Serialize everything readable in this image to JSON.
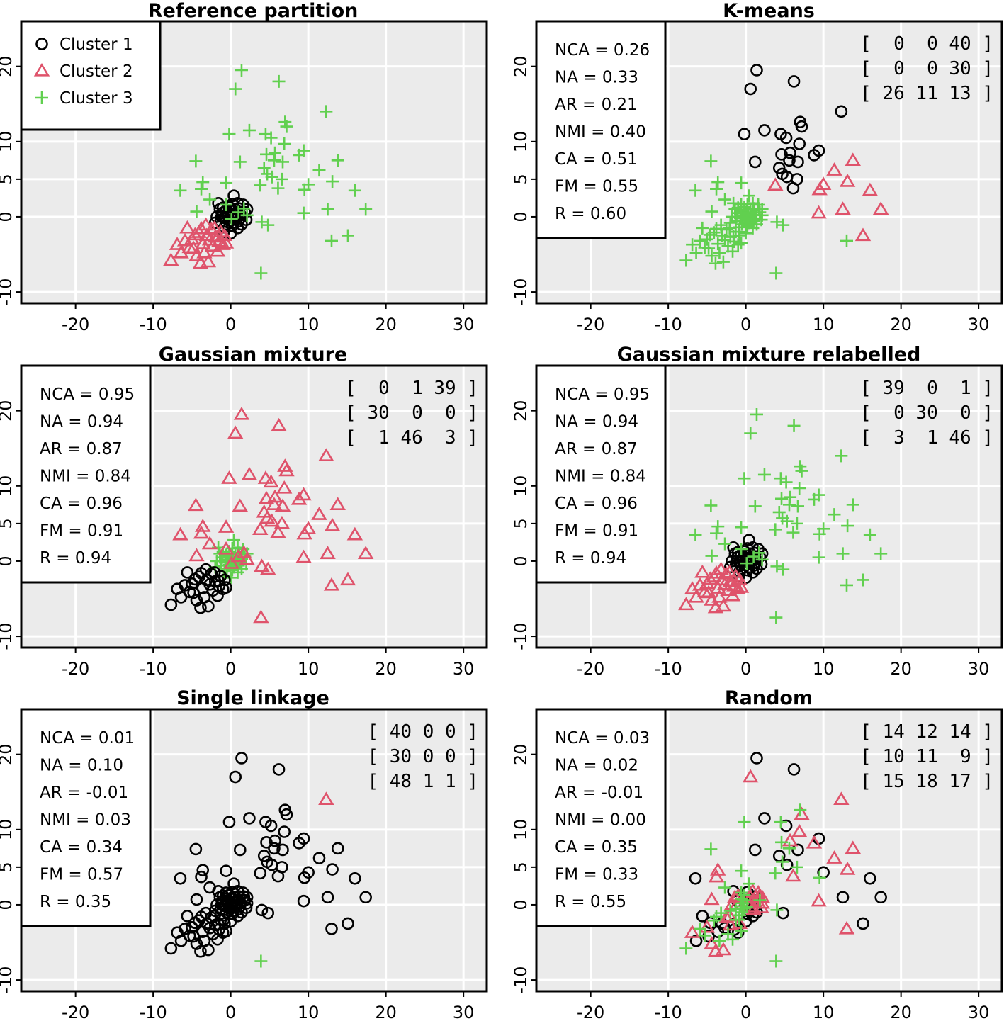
{
  "colors": {
    "cluster1": "#000000",
    "cluster2": "#df536b",
    "cluster3": "#61d04f",
    "panel_bg": "#ebebeb",
    "grid": "#ffffff"
  },
  "shared_axes": {
    "xlim": [
      -27,
      33
    ],
    "ylim": [
      -11.5,
      26
    ],
    "x_ticks": [
      -20,
      -10,
      0,
      10,
      20,
      30
    ],
    "x_tick_labels": [
      "-20",
      "-10",
      "0",
      "10",
      "20",
      "30"
    ],
    "y_ticks": [
      -10,
      0,
      5,
      10,
      20
    ],
    "y_tick_labels": [
      "-10",
      "0",
      "5",
      "10",
      "20"
    ]
  },
  "legend": {
    "entries": [
      {
        "label": "Cluster 1",
        "marker": "circle"
      },
      {
        "label": "Cluster 2",
        "marker": "triangle"
      },
      {
        "label": "Cluster 3",
        "marker": "plus"
      }
    ]
  },
  "panels": [
    {
      "title": "Reference partition",
      "stats": [],
      "matrix": [],
      "mapping": [
        "c1",
        "c2",
        "c3"
      ],
      "noise": 0
    },
    {
      "title": "K-means",
      "stats": [
        "NCA = 0.26",
        "NA = 0.33",
        "AR = 0.21",
        "NMI = 0.40",
        "CA = 0.51",
        "FM = 0.55",
        "R = 0.60"
      ],
      "matrix": [
        "[  0  0 40 ]",
        "[  0  0 30 ]",
        "[ 26 11 13 ]"
      ],
      "mapping": [
        "c3",
        "c3",
        "km"
      ],
      "noise": 0
    },
    {
      "title": "Gaussian mixture",
      "stats": [
        "NCA = 0.95",
        "NA = 0.94",
        "AR = 0.87",
        "NMI = 0.84",
        "CA = 0.96",
        "FM = 0.91",
        "R = 0.94"
      ],
      "matrix": [
        "[  0  1 39 ]",
        "[ 30  0  0 ]",
        "[  1 46  3 ]"
      ],
      "mapping": [
        "c3",
        "c1",
        "c2"
      ],
      "noise": 0
    },
    {
      "title": "Gaussian mixture relabelled",
      "stats": [
        "NCA = 0.95",
        "NA = 0.94",
        "AR = 0.87",
        "NMI = 0.84",
        "CA = 0.96",
        "FM = 0.91",
        "R = 0.94"
      ],
      "matrix": [
        "[ 39  0  1 ]",
        "[  0 30  0 ]",
        "[  3  1 46 ]"
      ],
      "mapping": [
        "c1",
        "c2",
        "c3"
      ],
      "noise": 0
    },
    {
      "title": "Single linkage",
      "stats": [
        "NCA = 0.01",
        "NA = 0.10",
        "AR = -0.01",
        "NMI = 0.03",
        "CA = 0.34",
        "FM = 0.57",
        "R = 0.35"
      ],
      "matrix": [
        "[ 40 0 0 ]",
        "[ 30 0 0 ]",
        "[ 48 1 1 ]"
      ],
      "mapping": [
        "c1",
        "c1",
        "sl"
      ],
      "noise": 0
    },
    {
      "title": "Random",
      "stats": [
        "NCA = 0.03",
        "NA = 0.02",
        "AR = -0.01",
        "NMI = 0.00",
        "CA = 0.35",
        "FM = 0.33",
        "R = 0.55"
      ],
      "matrix": [
        "[ 14 12 14 ]",
        "[ 10 11  9 ]",
        "[ 15 18 17 ]"
      ],
      "mapping": [
        "c1",
        "c2",
        "c3"
      ],
      "noise": 1
    }
  ],
  "chart_data": {
    "type": "scatter",
    "xlim": [
      -27,
      33
    ],
    "ylim": [
      -11.5,
      26
    ],
    "series": [
      {
        "name": "Cluster 1",
        "points": [
          [
            0,
            0
          ],
          [
            0.3,
            0.4
          ],
          [
            -0.4,
            0.2
          ],
          [
            0.5,
            -0.3
          ],
          [
            -0.2,
            -0.5
          ],
          [
            0.8,
            0.3
          ],
          [
            -0.7,
            -0.2
          ],
          [
            0.1,
            0.9
          ],
          [
            1,
            -0.6
          ],
          [
            -1.1,
            0.5
          ],
          [
            0.6,
            1
          ],
          [
            -0.5,
            -1
          ],
          [
            1.3,
            0.2
          ],
          [
            -1.3,
            -0.6
          ],
          [
            0.2,
            -1.2
          ],
          [
            -0.2,
            1.3
          ],
          [
            1.1,
            1.1
          ],
          [
            -1,
            1.2
          ],
          [
            1.4,
            -1
          ],
          [
            -1.4,
            1
          ],
          [
            0.4,
            2.8
          ],
          [
            -1.8,
            0
          ],
          [
            1.8,
            0.6
          ],
          [
            0.9,
            -1.5
          ],
          [
            -0.8,
            -1.4
          ],
          [
            0,
            -2.2
          ],
          [
            1.6,
            1.6
          ],
          [
            -1.6,
            1.8
          ],
          [
            2,
            -0.4
          ],
          [
            -2,
            -0.8
          ],
          [
            0.7,
            0.2
          ],
          [
            -0.3,
            0.6
          ],
          [
            0.4,
            -0.8
          ],
          [
            -0.6,
            0.8
          ],
          [
            1.2,
            -0.2
          ],
          [
            -1.2,
            0
          ],
          [
            0.2,
            1.7
          ],
          [
            0.9,
            1.8
          ],
          [
            -0.9,
            -2
          ],
          [
            2.1,
            1
          ]
        ]
      },
      {
        "name": "Cluster 2",
        "points": [
          [
            -7.7,
            -5.8
          ],
          [
            -6.4,
            -4.8
          ],
          [
            -5.9,
            -3.2
          ],
          [
            -5.6,
            -1.5
          ],
          [
            -5,
            -3
          ],
          [
            -4.8,
            -4.2
          ],
          [
            -4.4,
            -5.2
          ],
          [
            -4.1,
            -2.1
          ],
          [
            -3.9,
            -6.2
          ],
          [
            -3.8,
            -1.6
          ],
          [
            -3.6,
            -3.6
          ],
          [
            -3.4,
            -4.8
          ],
          [
            -3.1,
            -2.5
          ],
          [
            -2.9,
            -6
          ],
          [
            -2.7,
            -3.1
          ],
          [
            -2.5,
            -1.7
          ],
          [
            -2.3,
            -3.9
          ],
          [
            -2,
            -2.7
          ],
          [
            -1.7,
            -4.6
          ],
          [
            -1.5,
            -3.3
          ],
          [
            -1.3,
            -2
          ],
          [
            -1,
            -3.7
          ],
          [
            -0.8,
            -2.5
          ],
          [
            -4.6,
            -2.4
          ],
          [
            -6.9,
            -3.7
          ],
          [
            -3.2,
            -1.1
          ],
          [
            -2.1,
            -1.5
          ],
          [
            -5.3,
            -4.1
          ],
          [
            -1.6,
            -2.6
          ],
          [
            -0.6,
            -3.5
          ]
        ]
      },
      {
        "name": "Cluster 3",
        "points": [
          [
            1.4,
            19.5
          ],
          [
            0.6,
            17
          ],
          [
            6.2,
            18
          ],
          [
            12.3,
            14
          ],
          [
            7,
            12.6
          ],
          [
            7.2,
            12
          ],
          [
            -0.2,
            11
          ],
          [
            2.4,
            11.5
          ],
          [
            4.5,
            11
          ],
          [
            5.2,
            10.5
          ],
          [
            6.9,
            9.7
          ],
          [
            9.4,
            8.8
          ],
          [
            5.7,
            8.5
          ],
          [
            4.6,
            8.3
          ],
          [
            8.8,
            8.2
          ],
          [
            -4.5,
            7.4
          ],
          [
            1.2,
            7.3
          ],
          [
            5.6,
            7.5
          ],
          [
            6.7,
            7.3
          ],
          [
            13.8,
            7.5
          ],
          [
            4.3,
            6.5
          ],
          [
            11.4,
            6.2
          ],
          [
            4.7,
            5.7
          ],
          [
            -3.6,
            4.6
          ],
          [
            -0.6,
            4.5
          ],
          [
            5.3,
            5.3
          ],
          [
            6.6,
            5
          ],
          [
            10,
            4.3
          ],
          [
            13.1,
            4.7
          ],
          [
            -6.5,
            3.5
          ],
          [
            -3.8,
            3.7
          ],
          [
            3.8,
            4.2
          ],
          [
            6.1,
            3.8
          ],
          [
            9.5,
            3.6
          ],
          [
            16,
            3.5
          ],
          [
            -2.7,
            2.3
          ],
          [
            12.5,
            1
          ],
          [
            9.4,
            0.5
          ],
          [
            17.4,
            1
          ],
          [
            -4.4,
            0.7
          ],
          [
            -0.6,
            1.6
          ],
          [
            1.7,
            1.1
          ],
          [
            4,
            -0.7
          ],
          [
            4.8,
            -1.1
          ],
          [
            0.1,
            -0.3
          ],
          [
            1,
            0.6
          ],
          [
            2.1,
            0.2
          ],
          [
            15.1,
            -2.5
          ],
          [
            13,
            -3.2
          ],
          [
            3.9,
            -7.5
          ]
        ]
      },
      {
        "name": "",
        "points": [
          [
            1.4,
            19.5
          ],
          [
            0.6,
            17
          ],
          [
            6.2,
            18
          ],
          [
            12.3,
            14
          ],
          [
            7,
            12.6
          ],
          [
            7.2,
            12
          ],
          [
            -0.2,
            11
          ],
          [
            2.4,
            11.5
          ],
          [
            4.5,
            11
          ],
          [
            5.2,
            10.5
          ],
          [
            6.9,
            9.7
          ],
          [
            9.4,
            8.8
          ],
          [
            5.7,
            8.5
          ],
          [
            4.6,
            8.3
          ],
          [
            8.8,
            8.2
          ],
          [
            1.2,
            7.3
          ],
          [
            5.6,
            7.5
          ],
          [
            6.7,
            7.3
          ],
          [
            4.3,
            6.5
          ],
          [
            4.7,
            5.7
          ],
          [
            5.3,
            5.3
          ],
          [
            6.6,
            5
          ],
          [
            6.1,
            3.8
          ]
        ]
      },
      {
        "name": "",
        "points": [
          [
            13.8,
            7.5
          ],
          [
            11.4,
            6.2
          ],
          [
            10,
            4.3
          ],
          [
            13.1,
            4.7
          ],
          [
            3.8,
            4.2
          ],
          [
            9.5,
            3.6
          ],
          [
            16,
            3.5
          ],
          [
            12.5,
            1
          ],
          [
            9.4,
            0.5
          ],
          [
            17.4,
            1
          ],
          [
            15.1,
            -2.5
          ]
        ]
      },
      {
        "name": "",
        "points": [
          [
            12.3,
            14
          ]
        ]
      }
    ]
  }
}
